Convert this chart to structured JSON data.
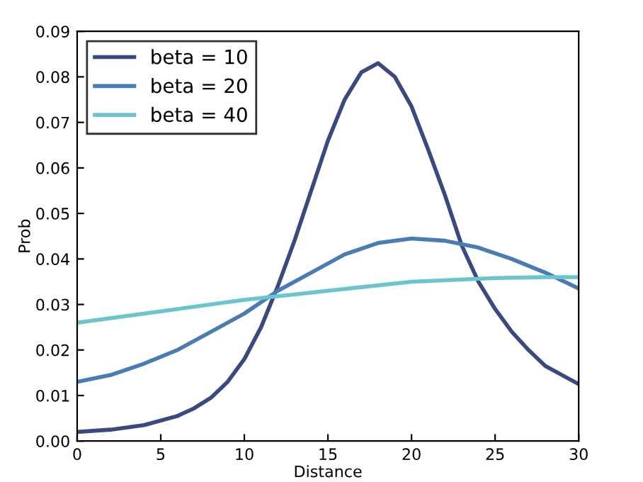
{
  "chart_data": {
    "type": "line",
    "xlabel": "Distance",
    "ylabel": "Prob",
    "xlim": [
      0,
      30
    ],
    "ylim": [
      0,
      0.09
    ],
    "xticks": [
      0,
      5,
      10,
      15,
      20,
      25,
      30
    ],
    "yticks": [
      {
        "value": 0,
        "label": "0.00"
      },
      {
        "value": 0.01,
        "label": "0.01"
      },
      {
        "value": 0.02,
        "label": "0.02"
      },
      {
        "value": 0.03,
        "label": "0.03"
      },
      {
        "value": 0.04,
        "label": "0.04"
      },
      {
        "value": 0.05,
        "label": "0.05"
      },
      {
        "value": 0.06,
        "label": "0.06"
      },
      {
        "value": 0.07,
        "label": "0.07"
      },
      {
        "value": 0.08,
        "label": "0.08"
      },
      {
        "value": 0.09,
        "label": "0.09"
      }
    ],
    "legend": "top left",
    "grid": false,
    "marker": "none",
    "line_style": "solid",
    "series": [
      {
        "name": "beta = 10",
        "color": "#3b4a7e",
        "x": [
          0,
          2,
          4,
          6,
          7,
          8,
          9,
          10,
          11,
          12,
          13,
          14,
          15,
          16,
          17,
          18,
          19,
          20,
          21,
          22,
          23,
          24,
          25,
          26,
          27,
          28,
          29,
          30
        ],
        "values": [
          0.002,
          0.0025,
          0.0035,
          0.0055,
          0.0072,
          0.0095,
          0.013,
          0.018,
          0.025,
          0.034,
          0.044,
          0.055,
          0.066,
          0.075,
          0.081,
          0.083,
          0.08,
          0.0735,
          0.064,
          0.054,
          0.043,
          0.035,
          0.029,
          0.024,
          0.02,
          0.0165,
          0.0145,
          0.0125
        ]
      },
      {
        "name": "beta = 20",
        "color": "#4a7bb2",
        "x": [
          0,
          2,
          4,
          6,
          8,
          10,
          12,
          14,
          16,
          18,
          20,
          22,
          24,
          26,
          28,
          30
        ],
        "values": [
          0.013,
          0.0145,
          0.017,
          0.02,
          0.024,
          0.028,
          0.033,
          0.037,
          0.041,
          0.0435,
          0.0445,
          0.044,
          0.0425,
          0.04,
          0.037,
          0.0335
        ]
      },
      {
        "name": "beta = 40",
        "color": "#6ac6cc",
        "x": [
          0,
          5,
          10,
          15,
          20,
          25,
          28,
          30
        ],
        "values": [
          0.026,
          0.0285,
          0.031,
          0.033,
          0.035,
          0.0358,
          0.036,
          0.036
        ]
      }
    ]
  }
}
